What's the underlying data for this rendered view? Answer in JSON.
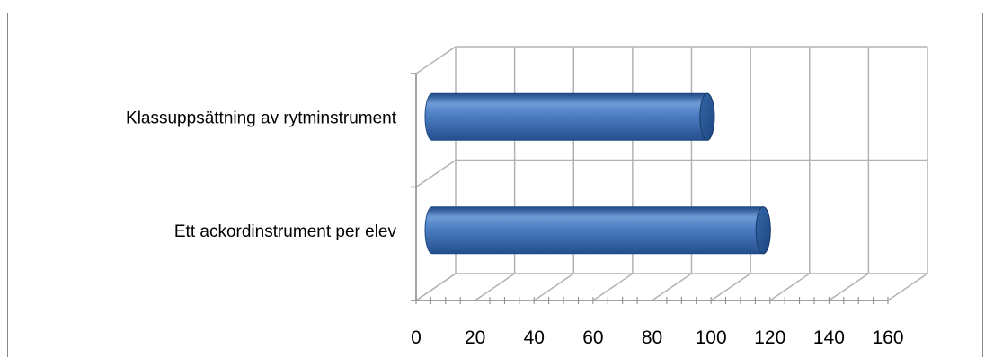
{
  "chart_data": {
    "type": "bar",
    "orientation": "horizontal",
    "style": "3d-cylinder",
    "categories": [
      "Klassuppsättning av rytminstrument",
      "Ett ackordinstrument per elev"
    ],
    "values": [
      92,
      111
    ],
    "xlim": [
      0,
      160
    ],
    "xticks": [
      "0",
      "20",
      "40",
      "60",
      "80",
      "100",
      "120",
      "140",
      "160"
    ],
    "grid": true,
    "legend": "none",
    "bar_color": "#4F81BD"
  }
}
